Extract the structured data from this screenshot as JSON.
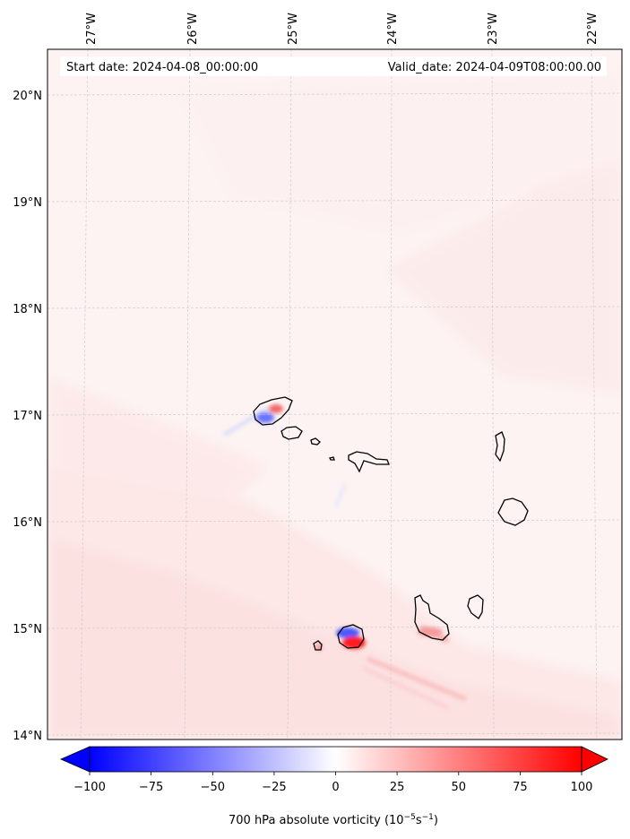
{
  "header": {
    "start_date": "Start date: 2024-04-08_00:00:00",
    "valid_date": "Valid_date: 2024-04-09T08:00:00.00"
  },
  "map": {
    "lon_ticks": [
      "27°W",
      "26°W",
      "25°W",
      "24°W",
      "23°W",
      "22°W"
    ],
    "lat_ticks": [
      "20°N",
      "19°N",
      "18°N",
      "17°N",
      "16°N",
      "15°N",
      "14°N"
    ],
    "gridlines": true,
    "coastline_color": "#000000",
    "islands": [
      "Santo Antão",
      "São Vicente",
      "Santa Luzia",
      "São Nicolau",
      "Sal",
      "Boa Vista",
      "Maio",
      "Santiago",
      "Fogo",
      "Brava"
    ]
  },
  "colorbar": {
    "min": -100,
    "max": 100,
    "ticks": [
      "−100",
      "−75",
      "−50",
      "−25",
      "0",
      "25",
      "50",
      "75",
      "100"
    ],
    "label": "700 hPa absolute vorticity (10",
    "label_exp1": "−5",
    "label_mid": "s",
    "label_exp2": "−1",
    "label_end": ")",
    "color_low": "#0000ff",
    "color_mid": "#ffffff",
    "color_high": "#ff0000",
    "extend": "both"
  }
}
